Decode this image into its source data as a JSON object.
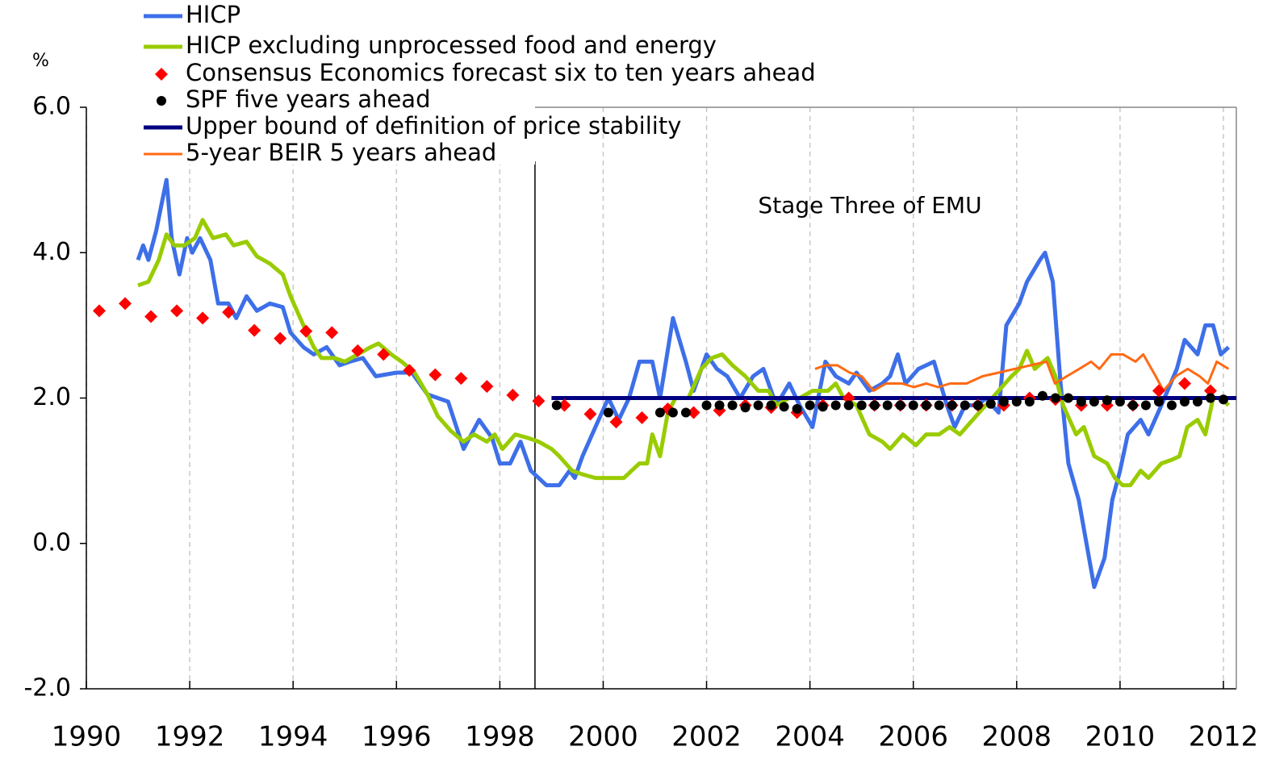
{
  "chart_data": {
    "type": "line",
    "y_label": "%",
    "annotation": "Stage Three of EMU",
    "vline_x": 1998.68,
    "xlim": [
      1990,
      2012.25
    ],
    "ylim": [
      -2,
      6
    ],
    "xticks": [
      1990,
      1992,
      1994,
      1996,
      1998,
      2000,
      2002,
      2004,
      2006,
      2008,
      2010,
      2012
    ],
    "yticks": [
      {
        "value": -2,
        "label": "-2.0"
      },
      {
        "value": 0,
        "label": "0.0"
      },
      {
        "value": 2,
        "label": "2.0"
      },
      {
        "value": 4,
        "label": "4.0"
      },
      {
        "value": 6,
        "label": "6.0"
      }
    ],
    "grid": true,
    "legend": "top-left",
    "series": [
      {
        "name": "HICP",
        "color": "#3d6fe8",
        "marker": "line",
        "x": [
          1991.0,
          1991.1,
          1991.2,
          1991.35,
          1991.55,
          1991.65,
          1991.8,
          1991.95,
          1992.05,
          1992.2,
          1992.4,
          1992.55,
          1992.75,
          1992.9,
          1993.1,
          1993.3,
          1993.55,
          1993.8,
          1993.95,
          1994.2,
          1994.4,
          1994.65,
          1994.9,
          1995.1,
          1995.35,
          1995.6,
          1996.0,
          1996.3,
          1996.6,
          1997.0,
          1997.3,
          1997.6,
          1997.85,
          1998.0,
          1998.2,
          1998.4,
          1998.6,
          1998.9,
          1999.15,
          1999.35,
          1999.45,
          1999.6,
          1999.85,
          2000.1,
          2000.3,
          2000.5,
          2000.7,
          2000.95,
          2001.1,
          2001.35,
          2001.6,
          2001.75,
          2002.0,
          2002.2,
          2002.4,
          2002.65,
          2002.9,
          2003.1,
          2003.35,
          2003.6,
          2003.8,
          2004.05,
          2004.3,
          2004.5,
          2004.75,
          2004.9,
          2005.15,
          2005.4,
          2005.55,
          2005.7,
          2005.85,
          2006.1,
          2006.4,
          2006.65,
          2006.8,
          2007.0,
          2007.25,
          2007.4,
          2007.65,
          2007.8,
          2008.05,
          2008.2,
          2008.45,
          2008.55,
          2008.7,
          2008.85,
          2009.0,
          2009.2,
          2009.35,
          2009.5,
          2009.7,
          2009.85,
          2010.0,
          2010.15,
          2010.4,
          2010.55,
          2010.8,
          2011.1,
          2011.25,
          2011.5,
          2011.65,
          2011.8,
          2011.95,
          2012.1
        ],
        "values": [
          3.9,
          4.1,
          3.9,
          4.3,
          5.0,
          4.2,
          3.7,
          4.2,
          4.0,
          4.2,
          3.9,
          3.3,
          3.3,
          3.1,
          3.4,
          3.2,
          3.3,
          3.25,
          2.9,
          2.7,
          2.6,
          2.7,
          2.45,
          2.5,
          2.55,
          2.3,
          2.35,
          2.35,
          2.05,
          1.95,
          1.3,
          1.7,
          1.45,
          1.1,
          1.1,
          1.4,
          1.0,
          0.8,
          0.8,
          1.0,
          0.9,
          1.2,
          1.6,
          2.0,
          1.7,
          2.0,
          2.5,
          2.5,
          2.0,
          3.1,
          2.5,
          2.1,
          2.6,
          2.4,
          2.3,
          2.0,
          2.3,
          2.4,
          1.9,
          2.2,
          1.9,
          1.6,
          2.5,
          2.3,
          2.2,
          2.35,
          2.1,
          2.2,
          2.3,
          2.6,
          2.2,
          2.4,
          2.5,
          1.9,
          1.6,
          1.9,
          1.9,
          2.0,
          1.8,
          3.0,
          3.3,
          3.6,
          3.9,
          4.0,
          3.6,
          2.2,
          1.1,
          0.6,
          0.0,
          -0.6,
          -0.2,
          0.6,
          1.0,
          1.5,
          1.7,
          1.5,
          1.9,
          2.4,
          2.8,
          2.6,
          3.0,
          3.0,
          2.6,
          2.7
        ]
      },
      {
        "name": "HICP excluding unprocessed food and energy",
        "color": "#99cc00",
        "marker": "line",
        "x": [
          1991.0,
          1991.2,
          1991.4,
          1991.55,
          1991.7,
          1991.9,
          1992.1,
          1992.25,
          1992.45,
          1992.7,
          1992.85,
          1993.1,
          1993.3,
          1993.55,
          1993.8,
          1993.95,
          1994.2,
          1994.4,
          1994.55,
          1994.8,
          1995.0,
          1995.25,
          1995.5,
          1995.65,
          1995.9,
          1996.1,
          1996.35,
          1996.6,
          1996.8,
          1997.05,
          1997.3,
          1997.5,
          1997.75,
          1997.9,
          1998.05,
          1998.3,
          1998.55,
          1998.75,
          1999.0,
          1999.15,
          1999.4,
          1999.6,
          1999.85,
          2000.1,
          2000.25,
          2000.4,
          2000.55,
          2000.7,
          2000.85,
          2000.95,
          2001.1,
          2001.25,
          2001.4,
          2001.65,
          2001.9,
          2002.1,
          2002.3,
          2002.5,
          2002.75,
          2003.0,
          2003.2,
          2003.35,
          2003.6,
          2003.8,
          2004.05,
          2004.35,
          2004.5,
          2004.65,
          2004.9,
          2005.15,
          2005.4,
          2005.55,
          2005.8,
          2006.05,
          2006.25,
          2006.5,
          2006.7,
          2006.9,
          2007.15,
          2007.4,
          2007.65,
          2007.9,
          2008.05,
          2008.2,
          2008.35,
          2008.6,
          2008.75,
          2008.9,
          2009.15,
          2009.3,
          2009.5,
          2009.75,
          2009.9,
          2010.05,
          2010.2,
          2010.4,
          2010.55,
          2010.8,
          2011.0,
          2011.15,
          2011.3,
          2011.5,
          2011.65,
          2011.8,
          2011.95,
          2012.1
        ],
        "values": [
          3.55,
          3.6,
          3.9,
          4.25,
          4.1,
          4.1,
          4.2,
          4.45,
          4.2,
          4.25,
          4.1,
          4.15,
          3.95,
          3.85,
          3.7,
          3.4,
          3.0,
          2.7,
          2.55,
          2.55,
          2.5,
          2.6,
          2.7,
          2.75,
          2.6,
          2.5,
          2.35,
          2.05,
          1.75,
          1.55,
          1.4,
          1.5,
          1.4,
          1.5,
          1.3,
          1.5,
          1.45,
          1.4,
          1.3,
          1.2,
          1.0,
          0.95,
          0.9,
          0.9,
          0.9,
          0.9,
          1.0,
          1.1,
          1.1,
          1.5,
          1.2,
          1.8,
          2.0,
          2.0,
          2.4,
          2.55,
          2.6,
          2.45,
          2.3,
          2.1,
          2.1,
          1.9,
          2.0,
          2.0,
          2.1,
          2.1,
          2.2,
          2.0,
          1.9,
          1.5,
          1.4,
          1.3,
          1.5,
          1.35,
          1.5,
          1.5,
          1.6,
          1.5,
          1.7,
          1.9,
          2.1,
          2.3,
          2.4,
          2.65,
          2.4,
          2.55,
          2.3,
          1.9,
          1.5,
          1.6,
          1.2,
          1.1,
          0.9,
          0.8,
          0.8,
          1.0,
          0.9,
          1.1,
          1.15,
          1.2,
          1.6,
          1.7,
          1.5,
          2.0,
          2.0,
          1.9
        ]
      },
      {
        "name": "Consensus Economics forecast six to ten years ahead",
        "color": "#ff0000",
        "marker": "diamond",
        "x": [
          1990.25,
          1990.75,
          1991.25,
          1991.75,
          1992.25,
          1992.75,
          1993.25,
          1993.75,
          1994.25,
          1994.75,
          1995.25,
          1995.75,
          1996.25,
          1996.75,
          1997.25,
          1997.75,
          1998.25,
          1998.75,
          1999.25,
          1999.75,
          2000.25,
          2000.75,
          2001.25,
          2001.75,
          2002.25,
          2002.75,
          2003.25,
          2003.75,
          2004.25,
          2004.75,
          2005.25,
          2005.75,
          2006.25,
          2006.75,
          2007.25,
          2007.75,
          2008.25,
          2008.75,
          2009.25,
          2009.75,
          2010.25,
          2010.75,
          2011.25,
          2011.75
        ],
        "values": [
          3.2,
          3.3,
          3.12,
          3.2,
          3.1,
          3.18,
          2.93,
          2.82,
          2.92,
          2.9,
          2.65,
          2.6,
          2.38,
          2.32,
          2.27,
          2.16,
          2.04,
          1.96,
          1.9,
          1.78,
          1.67,
          1.73,
          1.85,
          1.8,
          1.83,
          1.9,
          1.87,
          1.8,
          1.9,
          2.0,
          1.9,
          1.9,
          1.9,
          1.9,
          1.9,
          1.9,
          2.0,
          1.98,
          1.9,
          1.9,
          1.9,
          2.1,
          2.2,
          2.1
        ]
      },
      {
        "name": "SPF five years ahead",
        "color": "#000000",
        "marker": "dot",
        "x": [
          1999.1,
          2000.1,
          2001.1,
          2001.35,
          2001.6,
          2002.0,
          2002.25,
          2002.5,
          2002.75,
          2003.0,
          2003.25,
          2003.5,
          2003.75,
          2004.0,
          2004.25,
          2004.5,
          2004.75,
          2005.0,
          2005.25,
          2005.5,
          2005.75,
          2006.0,
          2006.25,
          2006.5,
          2006.75,
          2007.0,
          2007.25,
          2007.5,
          2007.75,
          2008.0,
          2008.25,
          2008.5,
          2008.75,
          2009.0,
          2009.25,
          2009.5,
          2009.75,
          2010.0,
          2010.25,
          2010.5,
          2010.75,
          2011.0,
          2011.25,
          2011.5,
          2011.75,
          2012.0
        ],
        "values": [
          1.9,
          1.8,
          1.8,
          1.8,
          1.8,
          1.9,
          1.9,
          1.9,
          1.87,
          1.9,
          1.9,
          1.88,
          1.85,
          1.9,
          1.88,
          1.9,
          1.9,
          1.9,
          1.9,
          1.9,
          1.9,
          1.9,
          1.9,
          1.9,
          1.9,
          1.9,
          1.9,
          1.92,
          1.95,
          1.95,
          1.95,
          2.03,
          2.0,
          2.0,
          1.95,
          1.95,
          1.97,
          1.95,
          1.9,
          1.9,
          1.95,
          1.9,
          1.95,
          1.95,
          2.0,
          1.98
        ]
      },
      {
        "name": "Upper bound of definition of price stability",
        "color": "#000080",
        "marker": "line",
        "x": [
          1999.0,
          2012.25
        ],
        "values": [
          2,
          2
        ]
      },
      {
        "name": "5-year BEIR 5 years ahead",
        "color": "#ff6a13",
        "marker": "line",
        "x": [
          2004.1,
          2004.3,
          2004.53,
          2004.77,
          2005.0,
          2005.23,
          2005.47,
          2005.78,
          2006.01,
          2006.25,
          2006.48,
          2006.71,
          2007.03,
          2007.34,
          2007.65,
          2007.96,
          2008.27,
          2008.58,
          2008.74,
          2008.97,
          2009.21,
          2009.44,
          2009.6,
          2009.83,
          2010.06,
          2010.3,
          2010.45,
          2010.69,
          2010.84,
          2011.08,
          2011.31,
          2011.54,
          2011.7,
          2011.87,
          2012.1
        ],
        "values": [
          2.4,
          2.45,
          2.45,
          2.35,
          2.3,
          2.1,
          2.2,
          2.2,
          2.15,
          2.2,
          2.15,
          2.2,
          2.2,
          2.3,
          2.35,
          2.4,
          2.45,
          2.5,
          2.2,
          2.3,
          2.4,
          2.5,
          2.4,
          2.6,
          2.6,
          2.5,
          2.6,
          2.3,
          2.1,
          2.3,
          2.4,
          2.3,
          2.2,
          2.5,
          2.4
        ]
      }
    ]
  }
}
